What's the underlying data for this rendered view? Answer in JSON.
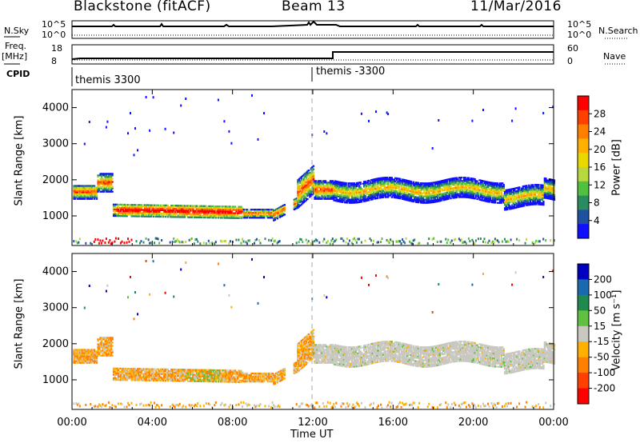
{
  "header": {
    "station": "Blackstone (fitACF)",
    "beam": "Beam 13",
    "date": "11/Mar/2016"
  },
  "left_labels": {
    "nsky": "N.Sky",
    "freq": "Freq.",
    "mhz": "[MHz]",
    "cpid": "CPID"
  },
  "right_labels": {
    "nsearch": "N.Search",
    "nave": "Nave"
  },
  "noise_axis": {
    "left_top": "10^5",
    "left_bottom": "10^0",
    "right_top": "10^5",
    "right_bottom": "10^0"
  },
  "freq_axis": {
    "left_top": "18",
    "left_bottom": "8",
    "right_top": "60",
    "right_bottom": "0"
  },
  "cpid": {
    "first": "themis 3300",
    "second": "themis -3300"
  },
  "chart_data": [
    {
      "type": "heatmap",
      "panel": "power",
      "ylabel": "Slant Range [km]",
      "colorbar_label": "Power [dB]",
      "colorbar_ticks": [
        "28",
        "24",
        "20",
        "16",
        "12",
        "8",
        "4"
      ],
      "colorbar_colors": [
        "#ff0000",
        "#ff4000",
        "#ff8000",
        "#ffb000",
        "#e8d800",
        "#b8d840",
        "#50c040",
        "#2a8a60",
        "#2050a0",
        "#1010ff"
      ],
      "yticks": [
        "4000",
        "3000",
        "2000",
        "1000"
      ],
      "ylim": [
        180,
        4500
      ],
      "xlim": [
        0,
        24
      ],
      "grid": false
    },
    {
      "type": "heatmap",
      "panel": "velocity",
      "ylabel": "Slant Range [km]",
      "colorbar_label": "Velocity [m s⁻¹]",
      "colorbar_ticks": [
        "200",
        "100",
        "50",
        "15",
        "-15",
        "-50",
        "-100",
        "-200"
      ],
      "colorbar_colors": [
        "#0000c0",
        "#1a6ab0",
        "#1e8a50",
        "#60c040",
        "#c8c8c0",
        "#ffb000",
        "#ff8000",
        "#ff4000",
        "#ff0000"
      ],
      "yticks": [
        "4000",
        "3000",
        "2000",
        "1000"
      ],
      "ylim": [
        180,
        4500
      ],
      "xlim": [
        0,
        24
      ],
      "grid": false
    }
  ],
  "xaxis": {
    "ticks": [
      "00:00",
      "04:00",
      "08:00",
      "12:00",
      "16:00",
      "20:00",
      "00:00"
    ],
    "label": "Time UT"
  }
}
